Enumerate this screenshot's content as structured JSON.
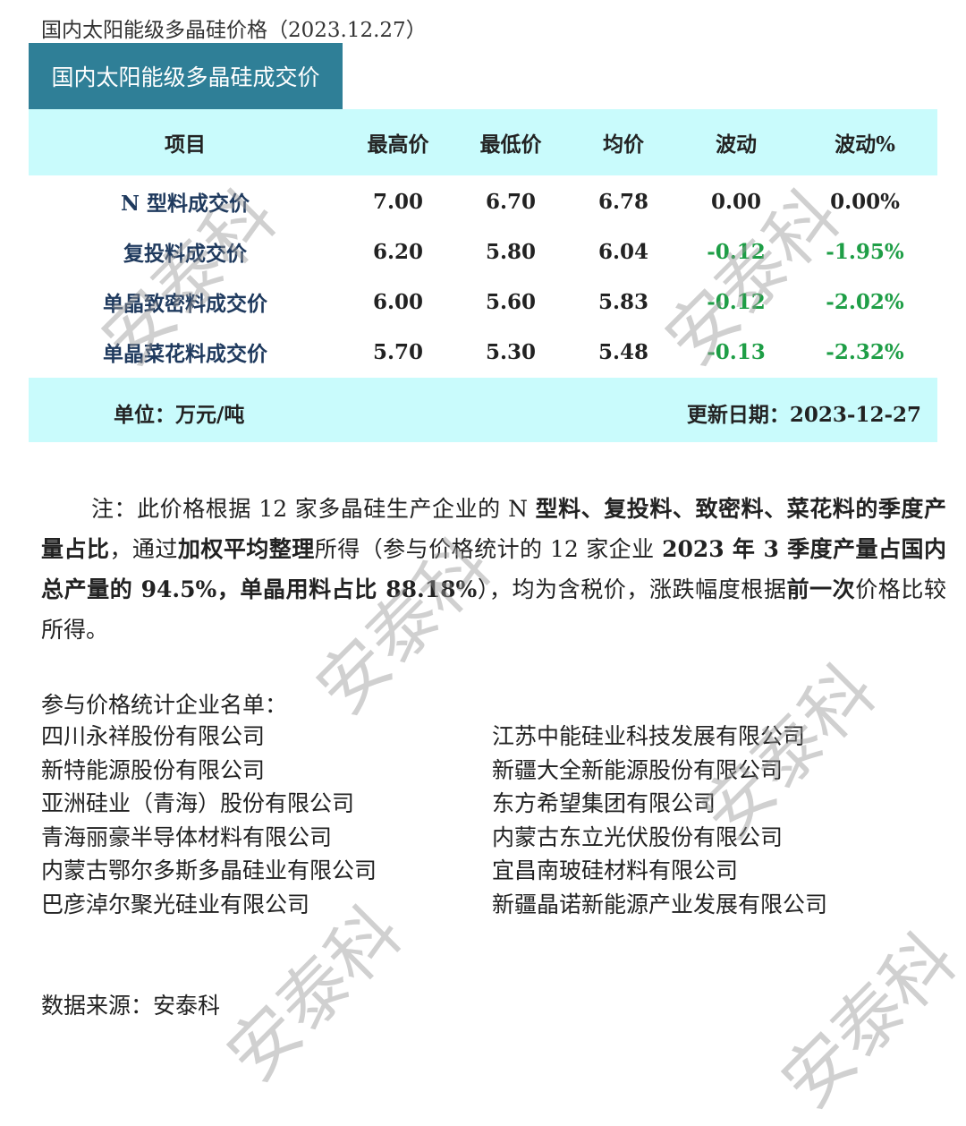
{
  "title": "国内太阳能级多晶硅价格（2023.12.27）",
  "table": {
    "heading": "国内太阳能级多晶硅成交价",
    "columns": [
      "项目",
      "最高价",
      "最低价",
      "均价",
      "波动",
      "波动%"
    ],
    "rows": [
      [
        "N 型料成交价",
        "7.00",
        "6.70",
        "6.78",
        "0.00",
        "0.00%"
      ],
      [
        "复投料成交价",
        "6.20",
        "5.80",
        "6.04",
        "-0.12",
        "-1.95%"
      ],
      [
        "单晶致密料成交价",
        "6.00",
        "5.60",
        "5.83",
        "-0.12",
        "-2.02%"
      ],
      [
        "单晶菜花料成交价",
        "5.70",
        "5.30",
        "5.48",
        "-0.13",
        "-2.32%"
      ]
    ],
    "unit": "单位：万元/吨",
    "updated": "更新日期：2023-12-27",
    "colors": {
      "header_bar": "#2f7f97",
      "band": "#c9fbfc",
      "negative": "#1e9e46"
    }
  },
  "note": [
    {
      "t": "注：此价格根据 12 家多晶硅生产企业的 N ",
      "b": false
    },
    {
      "t": "型料、复投料、致密料、菜花料的季度产量占比",
      "b": true
    },
    {
      "t": "，通过",
      "b": false
    },
    {
      "t": "加权平均整理",
      "b": true
    },
    {
      "t": "所得（参与价格统计的 12 家企业 ",
      "b": false
    },
    {
      "t": "2023 年 3 季度产量占国内总产量的 94.5%，单晶用料占比 88.18%",
      "b": true
    },
    {
      "t": "），均为含税价，涨跌幅度根据",
      "b": false
    },
    {
      "t": "前一次",
      "b": true
    },
    {
      "t": "价格比较所得。",
      "b": false
    }
  ],
  "companies_title": "参与价格统计企业名单：",
  "companies_left": [
    "四川永祥股份有限公司",
    "新特能源股份有限公司",
    "亚洲硅业（青海）股份有限公司",
    "青海丽豪半导体材料有限公司",
    "内蒙古鄂尔多斯多晶硅业有限公司",
    "巴彦淖尔聚光硅业有限公司"
  ],
  "companies_right": [
    "江苏中能硅业科技发展有限公司",
    "新疆大全新能源股份有限公司",
    "东方希望集团有限公司",
    "内蒙古东立光伏股份有限公司",
    "宜昌南玻硅材料有限公司",
    "新疆晶诺新能源产业发展有限公司"
  ],
  "source": "数据来源：安泰科",
  "watermark": "安泰科"
}
